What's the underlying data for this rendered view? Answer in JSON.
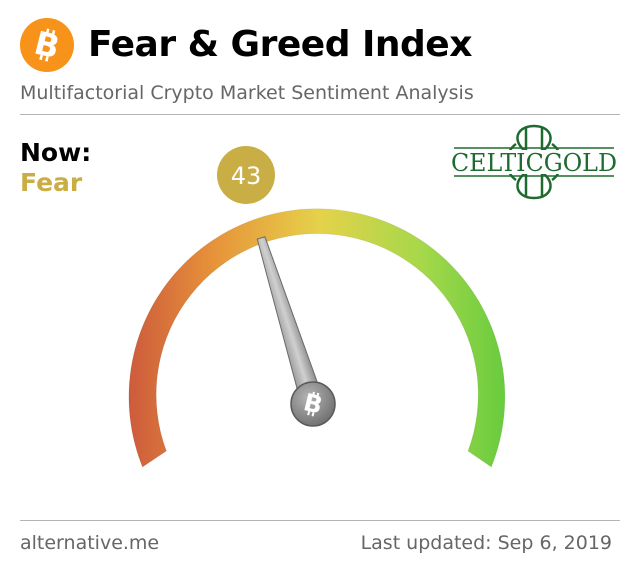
{
  "header": {
    "logo_icon": "bitcoin-icon",
    "title": "Fear & Greed Index",
    "subtitle": "Multifactorial Crypto Market Sentiment Analysis"
  },
  "status": {
    "now_label": "Now:",
    "classification": "Fear",
    "value": "43",
    "accent_color": "#c9ad45"
  },
  "gauge": {
    "min": 0,
    "max": 100,
    "value": 43,
    "hub_icon": "bitcoin-icon",
    "colors": [
      "#c8503c",
      "#e7943a",
      "#e5d24a",
      "#a4d84a",
      "#58c83b"
    ]
  },
  "partner": {
    "logo_text": "CELTICGOLD",
    "color": "#1e6b2f"
  },
  "footer": {
    "source": "alternative.me",
    "updated": "Last updated: Sep 6, 2019"
  }
}
